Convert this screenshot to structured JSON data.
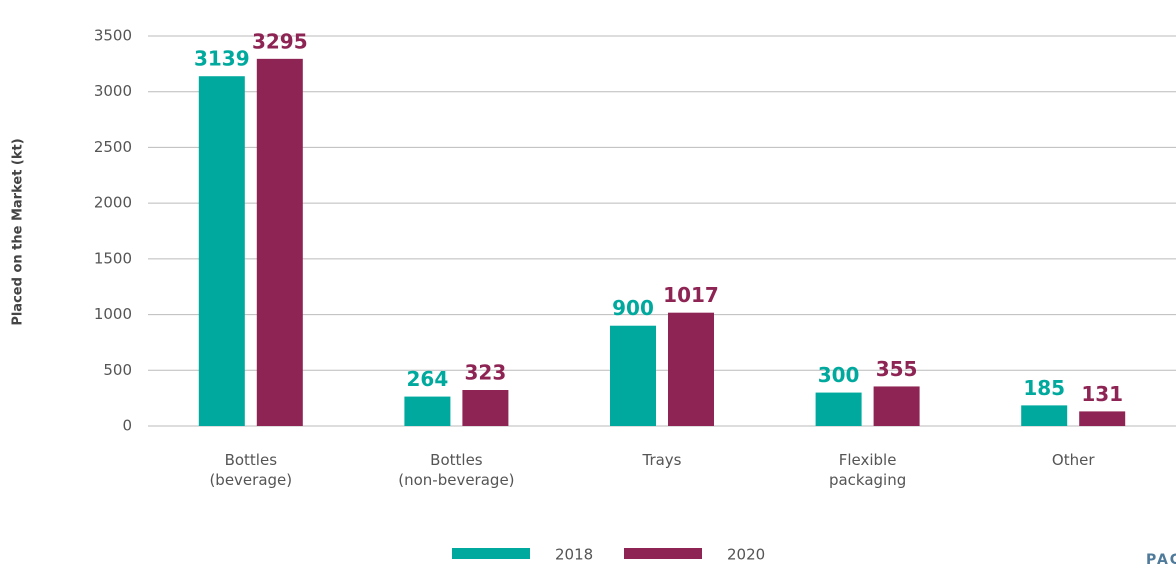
{
  "chart_data": {
    "type": "bar",
    "y_axis_label": "Placed on the Market (kt)",
    "categories": [
      "Bottles\n(beverage)",
      "Bottles\n(non-beverage)",
      "Trays",
      "Flexible\npackaging",
      "Other"
    ],
    "series": [
      {
        "name": "2018",
        "color": "#00a99d",
        "values": [
          3139,
          264,
          900,
          300,
          185
        ]
      },
      {
        "name": "2020",
        "color": "#8e2453",
        "values": [
          3295,
          323,
          1017,
          355,
          131
        ]
      }
    ],
    "ylim": [
      0,
      3500
    ],
    "yticks": [
      0,
      500,
      1000,
      1500,
      2000,
      2500,
      3000,
      3500
    ],
    "grid": true,
    "legend": "bottom",
    "annotation": "PAGE"
  }
}
